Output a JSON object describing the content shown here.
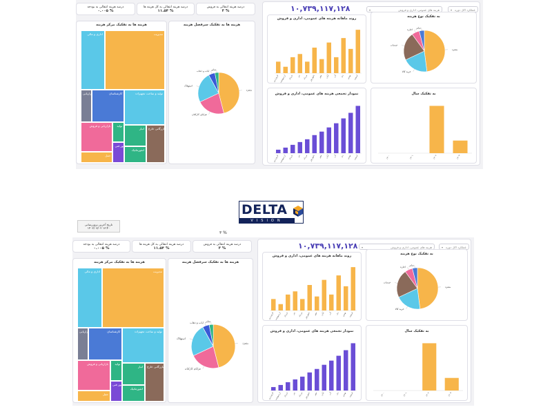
{
  "brand": {
    "name": "DELTA",
    "sub": "VISION"
  },
  "date_box": {
    "label": "تاریخ آخرین بروزرسانی",
    "value": "۱۴۰۳/۰۷/۰۲ ۱۳:۴۰"
  },
  "mid_value": "۳ %",
  "filters": {
    "period": "عملکرد اکل دوره",
    "categories": "هزینه های عمومی، اداری و فروش"
  },
  "total_value": "۱۰,۷۳۹,۱۱۷,۱۲۸",
  "kpis": [
    {
      "label": "درصد هزینه انتقالی به فروش",
      "value": "۳ %"
    },
    {
      "label": "درصد هزینه انتقالی به کل هزینه ها",
      "value": "۱۱.۵۴ %"
    },
    {
      "label": "درصد هزینه انتقالی به بودجه",
      "value": "۰.۰۰۵ %"
    }
  ],
  "titles": {
    "treemap": "هزینه ها به تفکیک مرکز هزینه",
    "pie_detail": "هزینه ها به تفکیک سرفصل هزینه",
    "bar_trend": "روند ماهانه هزینه های عمومی، اداری و فروش",
    "pie_type": "به تفکیک نوع هزینه",
    "bar_cumulative": "نمودار تجمعی هزینه های عمومی، اداری و فروش",
    "bar_year": "به تفکیک سال"
  },
  "treemap": {
    "items": [
      {
        "label": "مدیریت",
        "value": 30,
        "color": "#f7b54a"
      },
      {
        "label": "اداری و مالی",
        "value": 12,
        "color": "#5ac8e8"
      },
      {
        "label": "تولید و ساخت تجهیزات",
        "value": 12,
        "color": "#5ac8e8"
      },
      {
        "label": "بازرگانی خارج",
        "value": 6,
        "color": "#8a6a5a"
      },
      {
        "label": "انبار",
        "value": 4,
        "color": "#2fb585"
      },
      {
        "label": "انفورماتیک",
        "value": 3,
        "color": "#2fb585"
      },
      {
        "label": "کارشناسان",
        "value": 9,
        "color": "#4a7ad6"
      },
      {
        "label": "فروش و بازاریابی",
        "value": 3,
        "color": "#7a7f95"
      },
      {
        "label": "تولید",
        "value": 2,
        "color": "#2fb585"
      },
      {
        "label": "امور فنی",
        "value": 2,
        "color": "#7a4ad6"
      },
      {
        "label": "بازاریابی و فروش",
        "value": 8,
        "color": "#f06a9a"
      },
      {
        "label": "حمل",
        "value": 3,
        "color": "#f7b54a"
      }
    ]
  },
  "pie_detail": {
    "slices": [
      {
        "label": "حقوق و دستمزد",
        "value": 46,
        "color": "#f7b54a"
      },
      {
        "label": "مزایای کارکنان",
        "value": 22,
        "color": "#f06a9a"
      },
      {
        "label": "استهلاک",
        "value": 24,
        "color": "#5ac8e8"
      },
      {
        "label": "ایاب و ذهاب",
        "value": 5,
        "color": "#3a5ad6"
      },
      {
        "label": "سایر",
        "value": 3,
        "color": "#2fb585"
      }
    ]
  },
  "pie_type": {
    "slices": [
      {
        "label": "دستمزد",
        "value": 48,
        "color": "#f7b54a"
      },
      {
        "label": "خرید کالا",
        "value": 20,
        "color": "#5ac8e8"
      },
      {
        "label": "خدمات",
        "value": 22,
        "color": "#8a6a5a"
      },
      {
        "label": "اجاره",
        "value": 6,
        "color": "#f06a9a"
      },
      {
        "label": "سایر",
        "value": 4,
        "color": "#4a7ad6"
      }
    ]
  },
  "chart_data": [
    {
      "type": "bar",
      "title": "روند ماهانه هزینه های عمومی، اداری و فروش",
      "categories": [
        "فروردین",
        "اردیبهشت",
        "خرداد",
        "تیر",
        "مرداد",
        "شهریور",
        "مهر",
        "آبان",
        "آذر",
        "دی",
        "بهمن",
        "اسفند"
      ],
      "values": [
        18,
        10,
        25,
        30,
        18,
        40,
        22,
        48,
        25,
        55,
        38,
        68
      ],
      "color": "#f7b54a"
    },
    {
      "type": "bar",
      "title": "نمودار تجمعی هزینه های عمومی، اداری و فروش",
      "categories": [
        "فروردین",
        "اردیبهشت",
        "خرداد",
        "تیر",
        "مرداد",
        "شهریور",
        "مهر",
        "آبان",
        "آذر",
        "دی",
        "بهمن",
        "اسفند"
      ],
      "values": [
        5,
        8,
        12,
        16,
        20,
        26,
        31,
        37,
        43,
        50,
        58,
        68
      ],
      "color": "#6a4ed6"
    },
    {
      "type": "bar",
      "title": "به تفکیک سال",
      "categories": [
        "۱۴۰۰",
        "۱۴۰۱",
        "۱۴۰۲",
        "۱۴۰۳"
      ],
      "values": [
        0,
        0,
        75,
        20
      ],
      "color": "#f7b54a"
    }
  ]
}
